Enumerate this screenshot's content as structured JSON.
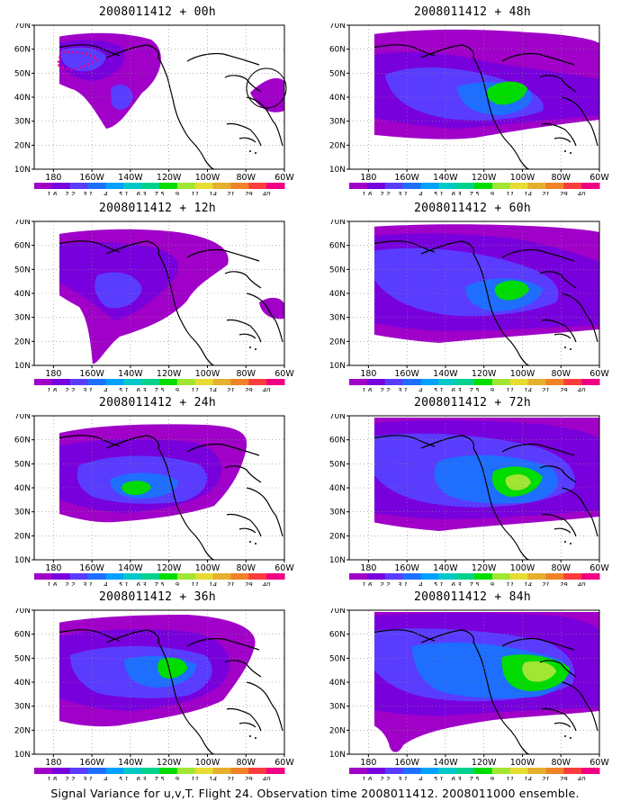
{
  "panels": [
    {
      "title": "2008011412 + 00h"
    },
    {
      "title": "2008011412 + 48h"
    },
    {
      "title": "2008011412 + 12h"
    },
    {
      "title": "2008011412 + 60h"
    },
    {
      "title": "2008011412 + 24h"
    },
    {
      "title": "2008011412 + 72h"
    },
    {
      "title": "2008011412 + 36h"
    },
    {
      "title": "2008011412 + 84h"
    }
  ],
  "y_labels": [
    "70N",
    "60N",
    "50N",
    "40N",
    "30N",
    "20N",
    "10N"
  ],
  "x_labels": [
    "180",
    "160W",
    "140W",
    "120W",
    "100W",
    "80W",
    "60W"
  ],
  "colorbar": {
    "labels": [
      "1.6",
      "2.2",
      "3.1",
      "4",
      "5.1",
      "6.3",
      "7.5",
      "9",
      "11",
      "14",
      "21",
      "29",
      "40"
    ],
    "colors": [
      "#a000c8",
      "#7800dc",
      "#5a3cff",
      "#1e6eff",
      "#00a0ff",
      "#00c8c8",
      "#00d28c",
      "#00dc00",
      "#a0e632",
      "#e6dc32",
      "#e6af2d",
      "#f08228",
      "#fa3c3c",
      "#f00082"
    ]
  },
  "footer": "Signal Variance for u,v,T. Flight 24. Observation time 2008011412. 2008011000 ensemble."
}
